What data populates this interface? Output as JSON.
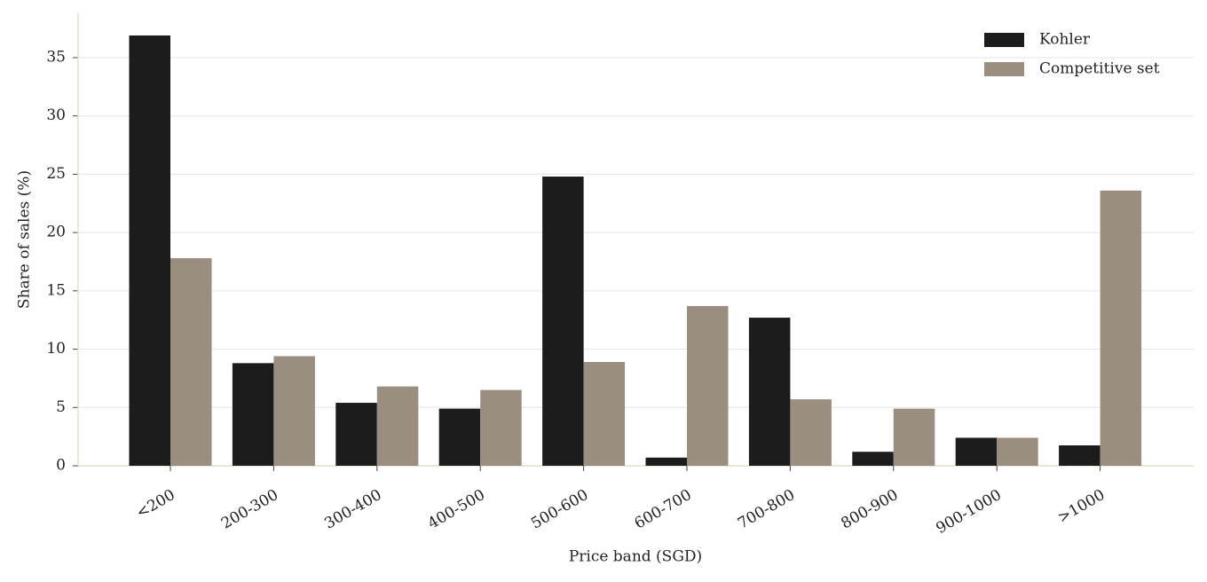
{
  "chart_data": {
    "type": "bar",
    "xlabel": "Price band (SGD)",
    "ylabel": "Share of sales (%)",
    "categories": [
      "<200",
      "200-300",
      "300-400",
      "400-500",
      "500-600",
      "600-700",
      "700-800",
      "800-900",
      "900-1000",
      ">1000"
    ],
    "series": [
      {
        "name": "Kohler",
        "color": "#1c1c1c",
        "values": [
          36.9,
          8.8,
          5.4,
          4.9,
          24.8,
          0.7,
          12.7,
          1.2,
          2.4,
          1.75
        ]
      },
      {
        "name": "Competitive set",
        "color": "#9a8e80",
        "values": [
          17.8,
          9.4,
          6.8,
          6.5,
          8.9,
          13.7,
          5.7,
          4.9,
          2.4,
          23.6
        ]
      }
    ],
    "ylim": [
      0,
      38.8
    ],
    "yticks": [
      0,
      5,
      10,
      15,
      20,
      25,
      30,
      35
    ],
    "grid": true,
    "legend": "upper right"
  }
}
